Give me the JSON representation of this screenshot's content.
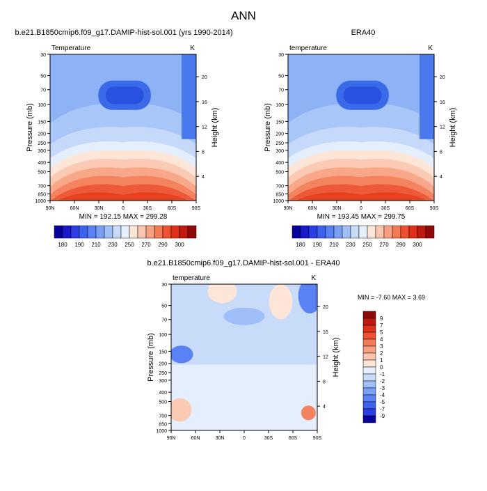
{
  "page_title": "ANN",
  "chart_data": [
    {
      "type": "heatmap",
      "id": "model",
      "title": "b.e21.B1850cmip6.f09_g17.DAMIP-hist-sol.001 (yrs 1990-2014)",
      "subtitle_left": "Temperature",
      "units": "K",
      "ylabel": "Pressure (mb)",
      "ylabel_right": "Height (km)",
      "x_ticks": [
        "90N",
        "60N",
        "30N",
        "0",
        "30S",
        "60S",
        "90S"
      ],
      "y_ticks": [
        "30",
        "50",
        "70",
        "100",
        "150",
        "200",
        "250",
        "300",
        "400",
        "500",
        "700",
        "850",
        "1000"
      ],
      "y_right_ticks": [
        "20",
        "16",
        "12",
        "8",
        "4"
      ],
      "stats": "MIN = 192.15   MAX = 299.28",
      "min": 192.15,
      "max": 299.28
    },
    {
      "type": "heatmap",
      "id": "obs",
      "title": "ERA40",
      "subtitle_left": "temperature",
      "units": "K",
      "ylabel": "Pressure (mb)",
      "ylabel_right": "Height (km)",
      "x_ticks": [
        "90N",
        "60N",
        "30N",
        "0",
        "30S",
        "60S",
        "90S"
      ],
      "y_ticks": [
        "30",
        "50",
        "70",
        "100",
        "150",
        "200",
        "250",
        "300",
        "400",
        "500",
        "700",
        "850",
        "1000"
      ],
      "y_right_ticks": [
        "20",
        "16",
        "12",
        "8",
        "4"
      ],
      "stats": "MIN = 193.45   MAX = 299.75",
      "min": 193.45,
      "max": 299.75
    },
    {
      "type": "heatmap",
      "id": "diff",
      "title": "b.e21.B1850cmip6.f09_g17.DAMIP-hist-sol.001 - ERA40",
      "subtitle_left": "temperature",
      "units": "K",
      "ylabel": "Pressure (mb)",
      "ylabel_right": "Height (km)",
      "x_ticks": [
        "90N",
        "60N",
        "30N",
        "0",
        "30S",
        "60S",
        "90S"
      ],
      "y_ticks": [
        "30",
        "50",
        "70",
        "100",
        "150",
        "200",
        "250",
        "300",
        "400",
        "500",
        "700",
        "850",
        "1000"
      ],
      "y_right_ticks": [
        "20",
        "16",
        "12",
        "8",
        "4"
      ],
      "stats": "MIN = -7.60  MAX =  3.69",
      "min": -7.6,
      "max": 3.69
    }
  ],
  "colorbars": {
    "absolute": {
      "labels": [
        "180",
        "190",
        "210",
        "230",
        "250",
        "270",
        "290",
        "300"
      ],
      "colors": [
        "#08009a",
        "#1a18c8",
        "#2c3ee6",
        "#3e62f0",
        "#5a82f4",
        "#7aa0f6",
        "#a0bff8",
        "#c8dcfa",
        "#e6f0fc",
        "#fde6d8",
        "#fbc6b0",
        "#f8a080",
        "#f47a56",
        "#ee5232",
        "#e0301a",
        "#c01a10",
        "#900808"
      ]
    },
    "difference": {
      "labels": [
        "9",
        "7",
        "5",
        "4",
        "3",
        "2",
        "1",
        "0",
        "-1",
        "-2",
        "-3",
        "-4",
        "-5",
        "-7",
        "-9"
      ],
      "colors": [
        "#900808",
        "#c01a10",
        "#e0301a",
        "#ee5232",
        "#f47a56",
        "#f8a080",
        "#fbc6b0",
        "#fde6d8",
        "#e6f0fc",
        "#c8dcfa",
        "#a0bff8",
        "#7aa0f6",
        "#5a82f4",
        "#3e62f0",
        "#2c3ee6",
        "#08009a"
      ]
    }
  }
}
